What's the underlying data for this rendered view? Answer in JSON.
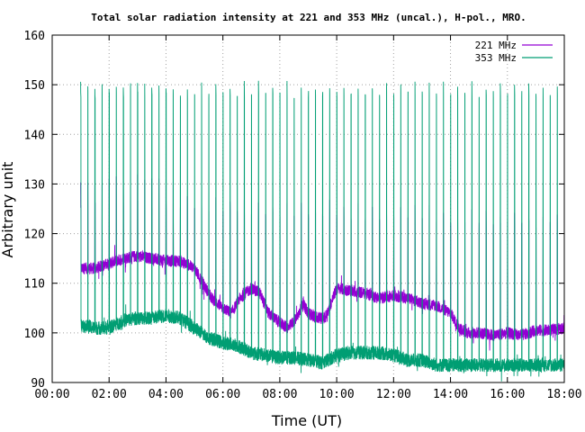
{
  "chart_data": {
    "type": "line",
    "title": "Total solar radiation intensity at 221 and 353 MHz (uncal.), H-pol., MRO.",
    "xlabel": "Time (UT)",
    "ylabel": "Arbitrary unit",
    "xlim": [
      0,
      18
    ],
    "ylim": [
      90,
      160
    ],
    "x_ticks": [
      {
        "value": 0,
        "label": "00:00"
      },
      {
        "value": 2,
        "label": "02:00"
      },
      {
        "value": 4,
        "label": "04:00"
      },
      {
        "value": 6,
        "label": "06:00"
      },
      {
        "value": 8,
        "label": "08:00"
      },
      {
        "value": 10,
        "label": "10:00"
      },
      {
        "value": 12,
        "label": "12:00"
      },
      {
        "value": 14,
        "label": "14:00"
      },
      {
        "value": 16,
        "label": "16:00"
      },
      {
        "value": 18,
        "label": "18:00"
      }
    ],
    "y_ticks": [
      {
        "value": 90,
        "label": "90"
      },
      {
        "value": 100,
        "label": "100"
      },
      {
        "value": 110,
        "label": "110"
      },
      {
        "value": 120,
        "label": "120"
      },
      {
        "value": 130,
        "label": "130"
      },
      {
        "value": 140,
        "label": "140"
      },
      {
        "value": 150,
        "label": "150"
      },
      {
        "value": 160,
        "label": "160"
      }
    ],
    "grid": true,
    "legend_position": "top-right",
    "x_start": 1.0,
    "x_end": 18.0,
    "calibration_pulse_interval": 0.25,
    "series": [
      {
        "name": "221 MHz",
        "color": "#9400d3",
        "baseline": [
          [
            1.0,
            113
          ],
          [
            1.5,
            113
          ],
          [
            2.0,
            114
          ],
          [
            2.5,
            115
          ],
          [
            3.0,
            115.5
          ],
          [
            3.5,
            115
          ],
          [
            4.0,
            114.5
          ],
          [
            4.5,
            114.5
          ],
          [
            5.0,
            113
          ],
          [
            5.3,
            110
          ],
          [
            5.6,
            107
          ],
          [
            6.0,
            105
          ],
          [
            6.3,
            104
          ],
          [
            6.6,
            107
          ],
          [
            7.0,
            109
          ],
          [
            7.3,
            108
          ],
          [
            7.6,
            104
          ],
          [
            8.0,
            102
          ],
          [
            8.3,
            101
          ],
          [
            8.6,
            103
          ],
          [
            8.8,
            106
          ],
          [
            9.0,
            104
          ],
          [
            9.3,
            103
          ],
          [
            9.6,
            103
          ],
          [
            10.0,
            109
          ],
          [
            10.5,
            108.5
          ],
          [
            11.0,
            108
          ],
          [
            11.5,
            107
          ],
          [
            12.0,
            107.5
          ],
          [
            12.5,
            107
          ],
          [
            13.0,
            106
          ],
          [
            13.5,
            105.5
          ],
          [
            14.0,
            104
          ],
          [
            14.3,
            101
          ],
          [
            14.6,
            100
          ],
          [
            15.0,
            100
          ],
          [
            15.5,
            99.5
          ],
          [
            16.0,
            100
          ],
          [
            16.5,
            99.5
          ],
          [
            17.0,
            100.5
          ],
          [
            17.5,
            100.5
          ],
          [
            18.0,
            101
          ]
        ],
        "pulse_peaks": [
          [
            1.0,
            130
          ],
          [
            3.0,
            132
          ],
          [
            5.0,
            128
          ],
          [
            6.0,
            127
          ],
          [
            9.0,
            126
          ],
          [
            11.0,
            126
          ],
          [
            13.0,
            125
          ],
          [
            15.0,
            124
          ],
          [
            18.0,
            124.5
          ]
        ],
        "pulse_plateaus": [
          [
            1.0,
            125.5
          ],
          [
            3.0,
            126
          ],
          [
            5.0,
            125
          ],
          [
            6.0,
            124
          ],
          [
            9.0,
            123.5
          ],
          [
            11.0,
            123
          ],
          [
            13.0,
            122.5
          ],
          [
            15.0,
            121.5
          ],
          [
            18.0,
            122
          ]
        ]
      },
      {
        "name": "353 MHz",
        "color": "#009e73",
        "baseline": [
          [
            1.0,
            101.5
          ],
          [
            1.5,
            101
          ],
          [
            2.0,
            101
          ],
          [
            2.5,
            102.5
          ],
          [
            3.0,
            103
          ],
          [
            3.5,
            103
          ],
          [
            4.0,
            103.5
          ],
          [
            4.5,
            103
          ],
          [
            5.0,
            101
          ],
          [
            5.5,
            99
          ],
          [
            6.0,
            98
          ],
          [
            6.5,
            97.5
          ],
          [
            7.0,
            96
          ],
          [
            7.5,
            95.5
          ],
          [
            8.0,
            95
          ],
          [
            8.5,
            95
          ],
          [
            9.0,
            94.5
          ],
          [
            9.5,
            94
          ],
          [
            10.0,
            95.5
          ],
          [
            10.5,
            96
          ],
          [
            11.0,
            96
          ],
          [
            11.5,
            96
          ],
          [
            12.0,
            95.5
          ],
          [
            12.5,
            94.5
          ],
          [
            13.0,
            94.5
          ],
          [
            13.5,
            93.5
          ],
          [
            14.0,
            93.5
          ],
          [
            15.0,
            93.5
          ],
          [
            16.0,
            93.5
          ],
          [
            17.0,
            93.5
          ],
          [
            18.0,
            93.5
          ]
        ],
        "pulse_peaks": [
          [
            1.0,
            150
          ],
          [
            3.0,
            150
          ],
          [
            5.0,
            150
          ],
          [
            7.0,
            150
          ],
          [
            9.0,
            150
          ],
          [
            11.0,
            150
          ],
          [
            13.0,
            150
          ],
          [
            15.0,
            150
          ],
          [
            18.0,
            150
          ]
        ],
        "pulse_plateaus": [
          [
            1.0,
            148
          ],
          [
            3.0,
            148
          ],
          [
            5.0,
            148
          ],
          [
            7.0,
            148
          ],
          [
            9.0,
            148
          ],
          [
            11.0,
            148
          ],
          [
            13.0,
            148
          ],
          [
            15.0,
            148
          ],
          [
            18.0,
            148
          ]
        ]
      }
    ]
  }
}
